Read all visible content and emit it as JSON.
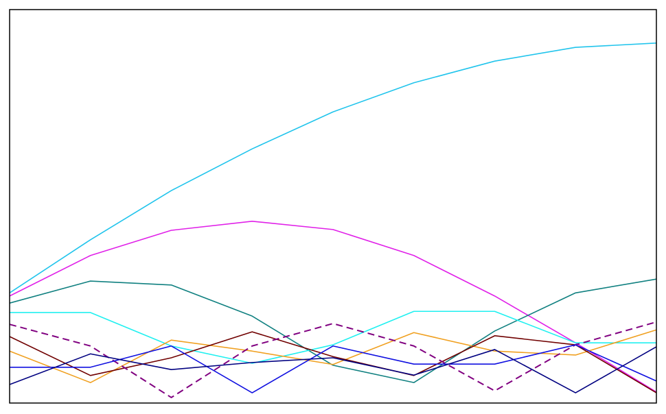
{
  "chart_data": {
    "type": "line",
    "categories": [
      null,
      null,
      null,
      null,
      null,
      null,
      null,
      null,
      null
    ],
    "ylim": [
      0,
      100
    ],
    "series": [
      {
        "color": "#20c4ec",
        "values": [
          28.0,
          41.5,
          54.0,
          64.6,
          74.0,
          81.4,
          86.9,
          90.4,
          91.5
        ]
      },
      {
        "color": "#e020e8",
        "values": [
          27.2,
          37.5,
          43.9,
          46.2,
          44.1,
          37.5,
          27.2,
          15.3,
          2.8
        ]
      },
      {
        "color": "#108080",
        "values": [
          25.4,
          31.0,
          30.0,
          22.1,
          9.6,
          5.2,
          18.3,
          28.0,
          31.5
        ]
      },
      {
        "color": "#20f0f0",
        "values": [
          23.0,
          23.0,
          14.5,
          10.1,
          14.8,
          23.3,
          23.3,
          15.3,
          15.3
        ]
      },
      {
        "color": "#f0a020",
        "values": [
          13.2,
          5.2,
          16.0,
          13.2,
          9.8,
          17.9,
          13.2,
          12.2,
          18.6
        ]
      },
      {
        "color": "#700000",
        "values": [
          16.9,
          7.0,
          11.5,
          18.1,
          11.8,
          7.0,
          17.1,
          14.8,
          2.6
        ]
      },
      {
        "color": "#800080",
        "dashed": true,
        "values": [
          20.0,
          14.5,
          1.4,
          14.5,
          20.2,
          14.5,
          3.1,
          14.8,
          20.6
        ]
      },
      {
        "color": "#1010e0",
        "values": [
          9.1,
          9.1,
          14.5,
          2.6,
          14.5,
          9.9,
          9.9,
          14.8,
          5.6
        ]
      },
      {
        "color": "#000080",
        "values": [
          4.7,
          12.5,
          8.5,
          10.3,
          11.5,
          7.1,
          13.6,
          2.6,
          14.3
        ]
      }
    ]
  }
}
